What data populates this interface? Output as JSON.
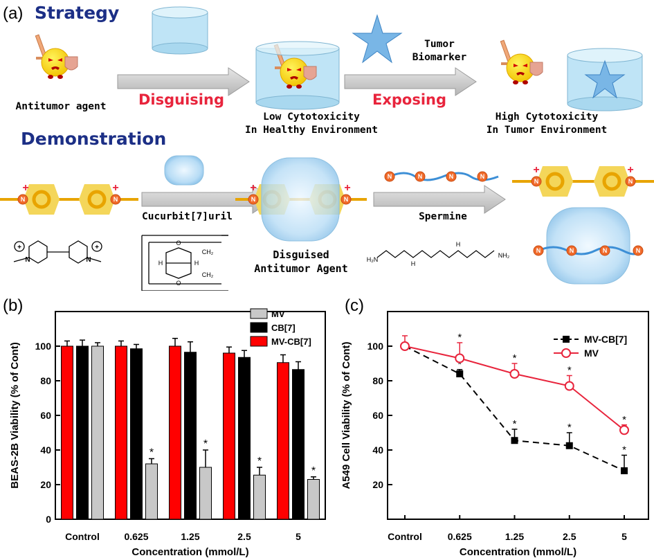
{
  "panel_a": {
    "letter": "(a)",
    "strategy_heading": "Strategy",
    "demonstration_heading": "Demonstration",
    "agent_label": "Antitumor agent",
    "disguising_label": "Disguising",
    "exposing_label": "Exposing",
    "biomarker_label": "Tumor\nBiomarker",
    "low_tox_label": "Low Cytotoxicity\nIn Healthy Environment",
    "high_tox_label": "High Cytotoxicity\nIn Tumor Environment",
    "cb7_label": "Cucurbit[7]uril",
    "spermine_label": "Spermine",
    "disguised_label": "Disguised\nAntitumor Agent",
    "n_symbol": "N",
    "plus_symbol": "+",
    "cb_index": "7",
    "nh2": "NH₂",
    "h2n": "H₂N",
    "ch2": "CH₂",
    "nh": "H",
    "o": "O",
    "h": "H"
  },
  "colors": {
    "mv": "#c8c8c8",
    "cb7": "#000000",
    "mvcb7": "#ff0000",
    "mvcb7_line": "#000000",
    "mv_line": "#e8243c",
    "heading_blue": "#1c2f86",
    "label_red": "#e8243c"
  },
  "chart_data": [
    {
      "id": "b",
      "type": "bar",
      "panel_letter": "(b)",
      "categories": [
        "Control",
        "0.625",
        "1.25",
        "2.5",
        "5"
      ],
      "series": [
        {
          "name": "MV-CB[7]",
          "values": [
            100,
            100,
            100,
            96,
            90.5
          ],
          "errors": [
            3,
            3,
            4.5,
            3.5,
            4.5
          ]
        },
        {
          "name": "CB[7]",
          "values": [
            100,
            98.5,
            96.5,
            93.5,
            86.5
          ],
          "errors": [
            3.5,
            2.5,
            6,
            4,
            4.5
          ]
        },
        {
          "name": "MV",
          "values": [
            100,
            32,
            30,
            25.5,
            23
          ],
          "errors": [
            2,
            3,
            10,
            4.5,
            1.5
          ]
        }
      ],
      "significance_marker": "*",
      "xlabel": "Concentration (mmol/L)",
      "ylabel": "BEAS-2B Viability (% of Cont)",
      "ylim": [
        0,
        120
      ],
      "yticks": [
        "0",
        "20",
        "40",
        "60",
        "80",
        "100"
      ],
      "legend_order": [
        "MV",
        "CB[7]",
        "MV-CB[7]"
      ],
      "legend_position": "top-right"
    },
    {
      "id": "c",
      "type": "line",
      "panel_letter": "(c)",
      "categories": [
        "Control",
        "0.625",
        "1.25",
        "2.5",
        "5"
      ],
      "series": [
        {
          "name": "MV-CB[7]",
          "values": [
            100,
            84,
            45.5,
            42.5,
            28
          ],
          "errors": [
            0,
            2.5,
            6.5,
            7.5,
            9
          ],
          "style": "dashed",
          "marker": "filled-square"
        },
        {
          "name": "MV",
          "values": [
            100,
            93,
            84,
            77,
            51.5
          ],
          "errors": [
            6,
            9,
            6,
            6,
            3
          ],
          "style": "solid",
          "marker": "open-circle"
        }
      ],
      "significance_marker": "*",
      "xlabel": "Concentration (mmol/L)",
      "ylabel": "A549 Cell Viability (% of Cont)",
      "ylim": [
        0,
        120
      ],
      "yticks": [
        "20",
        "40",
        "60",
        "80",
        "100"
      ],
      "legend_position": "top-right"
    }
  ]
}
